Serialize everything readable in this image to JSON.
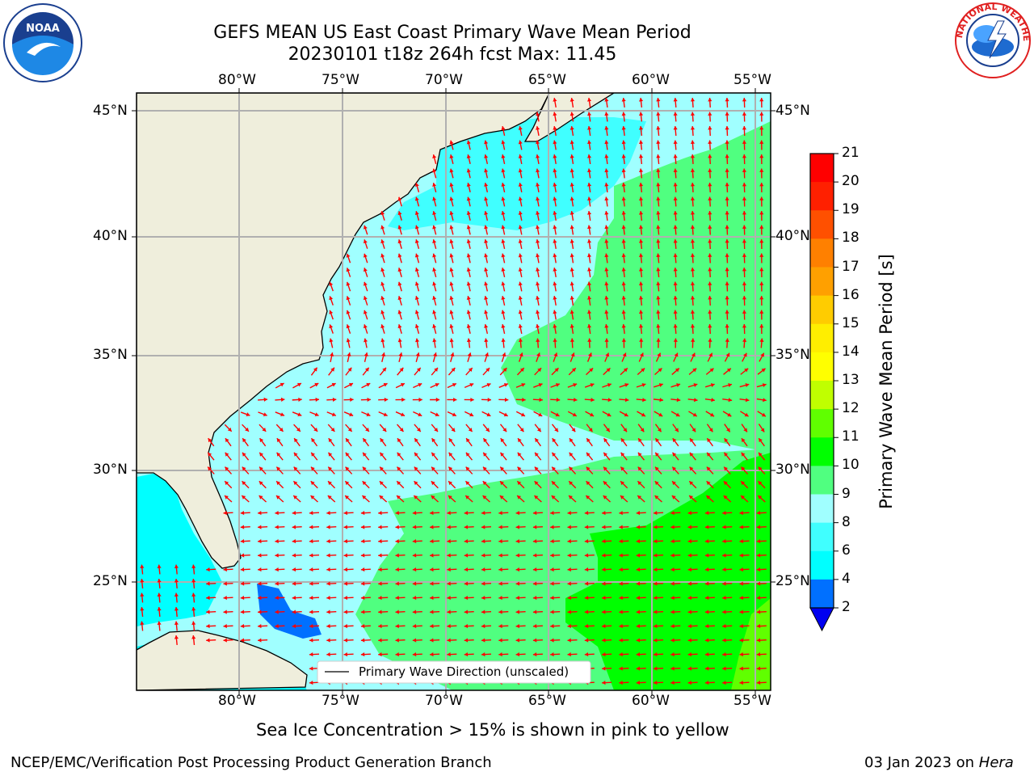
{
  "title": {
    "line1": "GEFS MEAN US East Coast Primary Wave Mean Period",
    "line2": "20230101 t18z 264h fcst   Max: 11.45"
  },
  "map": {
    "lon_labels": [
      "80°W",
      "75°W",
      "70°W",
      "65°W",
      "60°W",
      "55°W"
    ],
    "lat_labels": [
      "45°N",
      "40°N",
      "35°N",
      "30°N",
      "25°N"
    ],
    "legend_label": "Primary Wave Direction (unscaled)"
  },
  "colorbar": {
    "label": "Primary Wave Mean Period [s]",
    "ticks": [
      "2",
      "4",
      "6",
      "8",
      "9",
      "10",
      "11",
      "12",
      "13",
      "14",
      "15",
      "16",
      "17",
      "18",
      "19",
      "20",
      "21"
    ],
    "colors": [
      "#0000f0",
      "#0070ff",
      "#00ffff",
      "#40ffff",
      "#a0ffff",
      "#50ff80",
      "#00ff00",
      "#60ff00",
      "#c0ff00",
      "#ffff00",
      "#ffee00",
      "#ffcc00",
      "#ffa000",
      "#ff8000",
      "#ff5000",
      "#ff2000",
      "#ff0000"
    ]
  },
  "caption": "Sea Ice Concentration > 15% is shown in pink to yellow",
  "footer": {
    "left": "NCEP/EMC/Verification Post Processing Product Generation Branch",
    "right_date": "03 Jan 2023 on",
    "right_host": "Hera"
  },
  "logos": {
    "noaa": "NOAA",
    "nws": "NATIONAL WEATHER SERVICE"
  },
  "colors": {
    "land": "#efeedc",
    "arrow": "#ff0000",
    "grid": "#b0b0b0"
  }
}
